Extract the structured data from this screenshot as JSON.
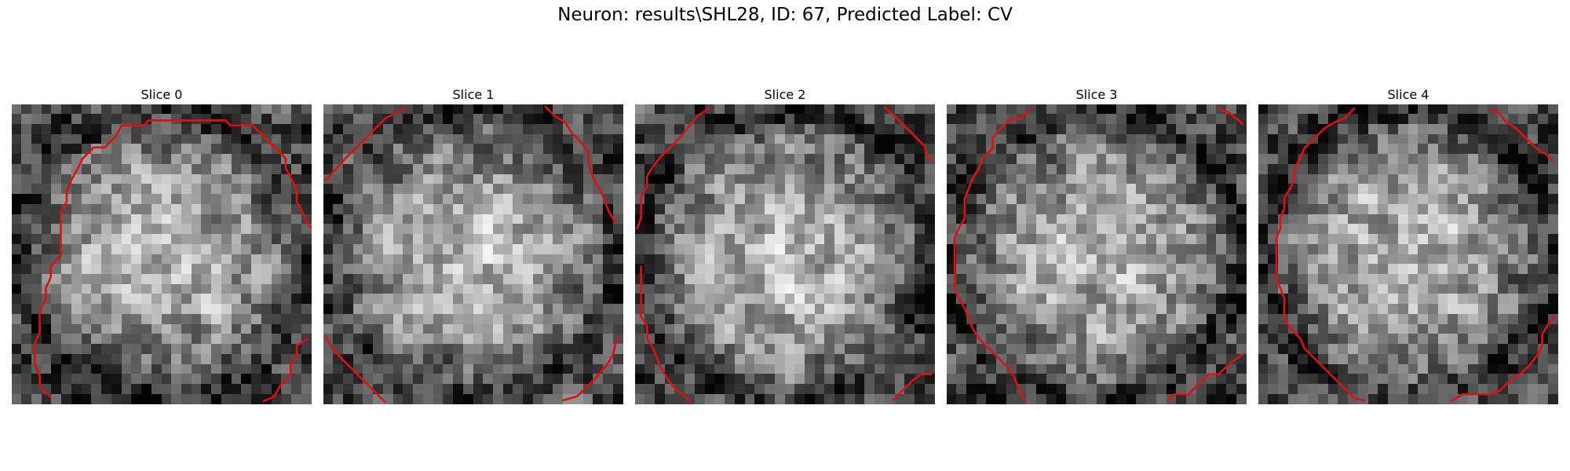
{
  "figure": {
    "title": "Neuron: results\\SHL28, ID: 67, Predicted Label: CV",
    "contour_color": "#e01010"
  },
  "slices": [
    {
      "label": "Slice 0"
    },
    {
      "label": "Slice 1"
    },
    {
      "label": "Slice 2"
    },
    {
      "label": "Slice 3"
    },
    {
      "label": "Slice 4"
    }
  ]
}
